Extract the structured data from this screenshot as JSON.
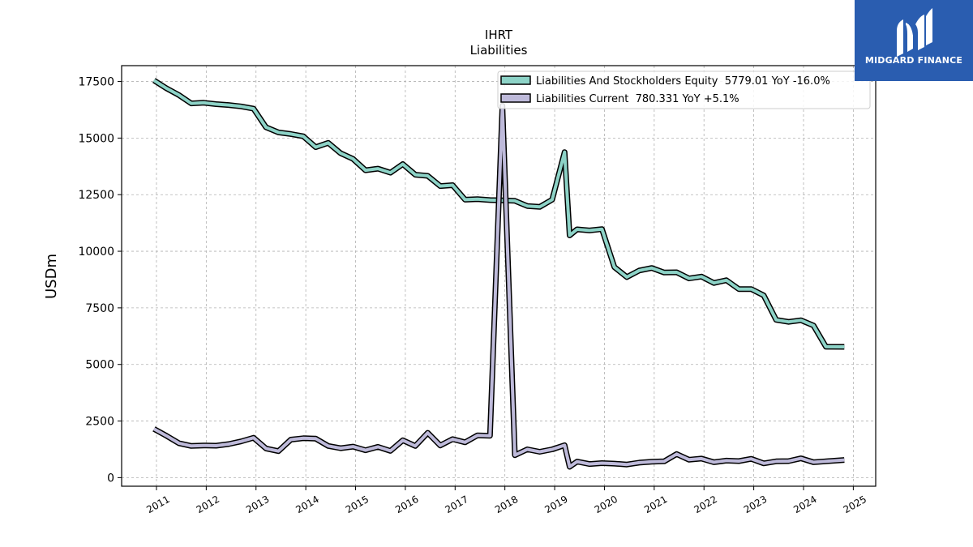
{
  "chart_data": {
    "type": "line",
    "title": "IHRT",
    "subtitle": "Liabilities",
    "xlabel": "",
    "ylabel": "USDm",
    "xlim": [
      2010.3,
      2025.45
    ],
    "ylim": [
      -380,
      18200
    ],
    "x_ticks": [
      2011,
      2012,
      2013,
      2014,
      2015,
      2016,
      2017,
      2018,
      2019,
      2020,
      2021,
      2022,
      2023,
      2024,
      2025
    ],
    "x_tick_labels": [
      "2011",
      "2012",
      "2013",
      "2014",
      "2015",
      "2016",
      "2017",
      "2018",
      "2019",
      "2020",
      "2021",
      "2022",
      "2023",
      "2024",
      "2025"
    ],
    "y_ticks": [
      0,
      2500,
      5000,
      7500,
      10000,
      12500,
      15000,
      17500
    ],
    "y_tick_labels": [
      "0",
      "2500",
      "5000",
      "7500",
      "10000",
      "12500",
      "15000",
      "17500"
    ],
    "grid": true,
    "legend_position": "top-right",
    "series": [
      {
        "name": "Liabilities And Stockholders Equity  5779.01 YoY -16.0%",
        "color": "#8dd3c7",
        "points": [
          [
            2010.95,
            17550
          ],
          [
            2011.2,
            17200
          ],
          [
            2011.45,
            16900
          ],
          [
            2011.7,
            16530
          ],
          [
            2011.95,
            16560
          ],
          [
            2012.2,
            16500
          ],
          [
            2012.45,
            16460
          ],
          [
            2012.7,
            16400
          ],
          [
            2012.95,
            16300
          ],
          [
            2013.2,
            15480
          ],
          [
            2013.45,
            15250
          ],
          [
            2013.7,
            15180
          ],
          [
            2013.95,
            15080
          ],
          [
            2014.2,
            14600
          ],
          [
            2014.45,
            14790
          ],
          [
            2014.7,
            14330
          ],
          [
            2014.95,
            14080
          ],
          [
            2015.2,
            13580
          ],
          [
            2015.45,
            13650
          ],
          [
            2015.7,
            13470
          ],
          [
            2015.95,
            13850
          ],
          [
            2016.2,
            13380
          ],
          [
            2016.45,
            13330
          ],
          [
            2016.7,
            12880
          ],
          [
            2016.95,
            12920
          ],
          [
            2017.2,
            12280
          ],
          [
            2017.45,
            12300
          ],
          [
            2017.7,
            12260
          ],
          [
            2017.95,
            12250
          ],
          [
            2018.2,
            12230
          ],
          [
            2018.45,
            12000
          ],
          [
            2018.7,
            11960
          ],
          [
            2018.95,
            12280
          ],
          [
            2019.2,
            14380
          ],
          [
            2019.3,
            10700
          ],
          [
            2019.45,
            10970
          ],
          [
            2019.7,
            10920
          ],
          [
            2019.95,
            10980
          ],
          [
            2020.2,
            9300
          ],
          [
            2020.45,
            8860
          ],
          [
            2020.7,
            9150
          ],
          [
            2020.95,
            9260
          ],
          [
            2021.2,
            9060
          ],
          [
            2021.45,
            9070
          ],
          [
            2021.7,
            8800
          ],
          [
            2021.95,
            8880
          ],
          [
            2022.2,
            8600
          ],
          [
            2022.45,
            8720
          ],
          [
            2022.7,
            8330
          ],
          [
            2022.95,
            8330
          ],
          [
            2023.2,
            8050
          ],
          [
            2023.45,
            6970
          ],
          [
            2023.7,
            6880
          ],
          [
            2023.95,
            6950
          ],
          [
            2024.2,
            6720
          ],
          [
            2024.45,
            5780
          ],
          [
            2024.82,
            5779.01
          ]
        ]
      },
      {
        "name": "Liabilities Current  780.331 YoY +5.1%",
        "color": "#bebada",
        "points": [
          [
            2010.95,
            2150
          ],
          [
            2011.2,
            1850
          ],
          [
            2011.45,
            1520
          ],
          [
            2011.7,
            1400
          ],
          [
            2011.95,
            1420
          ],
          [
            2012.2,
            1410
          ],
          [
            2012.45,
            1480
          ],
          [
            2012.7,
            1600
          ],
          [
            2012.95,
            1760
          ],
          [
            2013.2,
            1290
          ],
          [
            2013.45,
            1170
          ],
          [
            2013.7,
            1680
          ],
          [
            2013.95,
            1740
          ],
          [
            2014.2,
            1720
          ],
          [
            2014.45,
            1400
          ],
          [
            2014.7,
            1300
          ],
          [
            2014.95,
            1370
          ],
          [
            2015.2,
            1210
          ],
          [
            2015.45,
            1360
          ],
          [
            2015.7,
            1180
          ],
          [
            2015.95,
            1650
          ],
          [
            2016.2,
            1400
          ],
          [
            2016.45,
            1980
          ],
          [
            2016.7,
            1420
          ],
          [
            2016.95,
            1700
          ],
          [
            2017.2,
            1560
          ],
          [
            2017.45,
            1870
          ],
          [
            2017.7,
            1850
          ],
          [
            2017.95,
            16430
          ],
          [
            2018.2,
            990
          ],
          [
            2018.45,
            1250
          ],
          [
            2018.7,
            1140
          ],
          [
            2018.95,
            1250
          ],
          [
            2019.2,
            1430
          ],
          [
            2019.3,
            480
          ],
          [
            2019.45,
            710
          ],
          [
            2019.7,
            600
          ],
          [
            2019.95,
            640
          ],
          [
            2020.2,
            620
          ],
          [
            2020.45,
            580
          ],
          [
            2020.7,
            660
          ],
          [
            2020.95,
            700
          ],
          [
            2021.2,
            720
          ],
          [
            2021.45,
            1040
          ],
          [
            2021.7,
            790
          ],
          [
            2021.95,
            840
          ],
          [
            2022.2,
            680
          ],
          [
            2022.45,
            750
          ],
          [
            2022.7,
            730
          ],
          [
            2022.95,
            830
          ],
          [
            2023.2,
            630
          ],
          [
            2023.45,
            720
          ],
          [
            2023.7,
            730
          ],
          [
            2023.95,
            850
          ],
          [
            2024.2,
            680
          ],
          [
            2024.45,
            720
          ],
          [
            2024.82,
            780.331
          ]
        ]
      }
    ]
  },
  "logo": {
    "text": "MIDGARD FINANCE",
    "background": "#2a5db0"
  }
}
